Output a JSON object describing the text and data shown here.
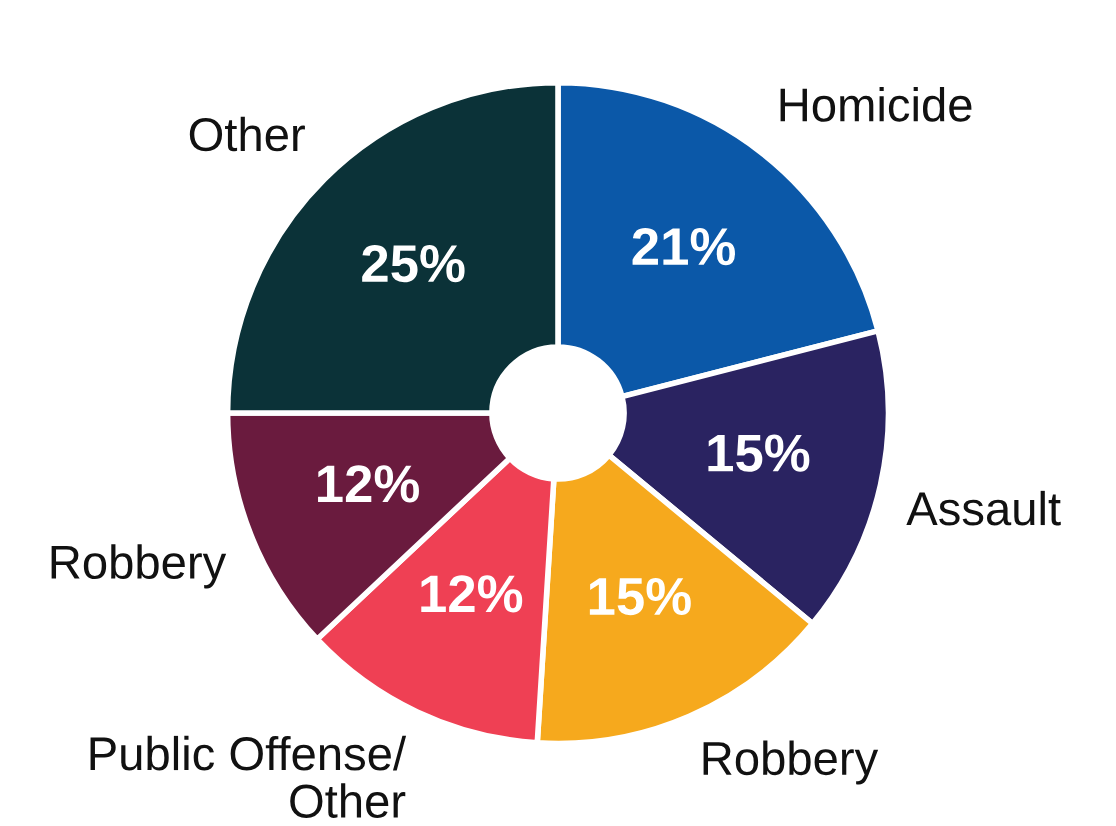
{
  "chart_data": {
    "type": "donut",
    "categories": [
      "Homicide",
      "Assault",
      "Robbery",
      "Public Offense/\nOther",
      "Robbery",
      "Other"
    ],
    "values": [
      21,
      15,
      15,
      12,
      12,
      25
    ],
    "value_labels": [
      "21%",
      "15%",
      "15%",
      "12%",
      "12%",
      "25%"
    ],
    "colors": [
      "#0b58a8",
      "#2a2361",
      "#f6a91d",
      "#ef4054",
      "#6a1b3e",
      "#0b3238"
    ],
    "legend": false
  }
}
